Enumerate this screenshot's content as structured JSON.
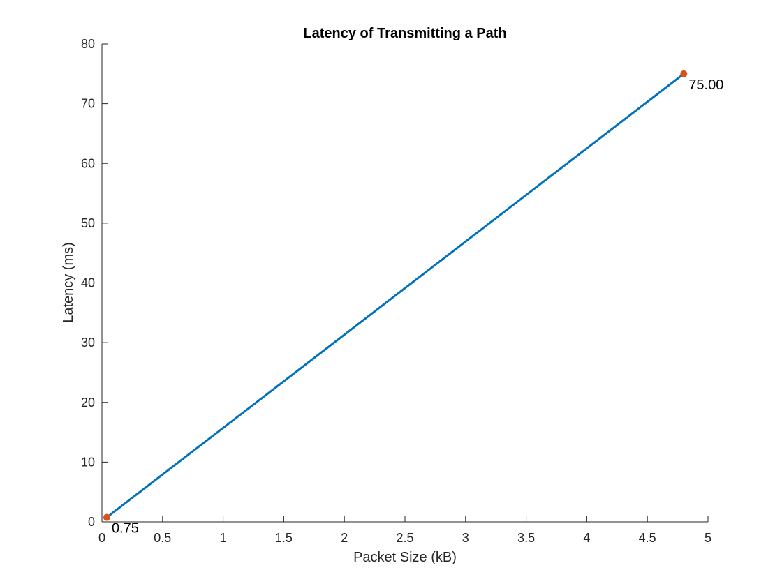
{
  "chart_data": {
    "type": "line",
    "title": "Latency of Transmitting a Path",
    "xlabel": "Packet Size (kB)",
    "ylabel": "Latency (ms)",
    "xlim": [
      0,
      5
    ],
    "ylim": [
      0,
      80
    ],
    "xticks": [
      0,
      0.5,
      1,
      1.5,
      2,
      2.5,
      3,
      3.5,
      4,
      4.5,
      5
    ],
    "xtick_labels": [
      "0",
      "0.5",
      "1",
      "1.5",
      "2",
      "2.5",
      "3",
      "3.5",
      "4",
      "4.5",
      "5"
    ],
    "yticks": [
      0,
      10,
      20,
      30,
      40,
      50,
      60,
      70,
      80
    ],
    "ytick_labels": [
      "0",
      "10",
      "20",
      "30",
      "40",
      "50",
      "60",
      "70",
      "80"
    ],
    "grid": false,
    "series": [
      {
        "x": [
          0.04,
          4.8
        ],
        "y": [
          0.75,
          75.0
        ],
        "color": "#0072BD"
      }
    ],
    "markers": [
      {
        "x": 0.04,
        "y": 0.75,
        "label": "0.75",
        "color": "#D95319"
      },
      {
        "x": 4.8,
        "y": 75.0,
        "label": "75.00",
        "color": "#D95319"
      }
    ]
  }
}
